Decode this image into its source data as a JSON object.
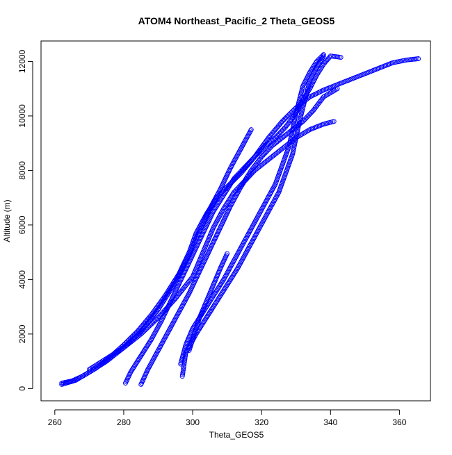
{
  "chart_data": {
    "type": "scatter",
    "title": "ATOM4 Northeast_Pacific_2 Theta_GEOS5",
    "xlabel": "Theta_GEOS5",
    "ylabel": "Altitude (m)",
    "xlim": [
      256,
      369
    ],
    "ylim": [
      -450,
      12750
    ],
    "x_ticks": [
      260,
      280,
      300,
      320,
      340,
      360
    ],
    "x_tick_labels": [
      "260",
      "280",
      "300",
      "320",
      "340",
      "360"
    ],
    "y_ticks": [
      0,
      2000,
      4000,
      6000,
      8000,
      10000,
      12000
    ],
    "y_tick_labels": [
      "0",
      "2000",
      "4000",
      "6000",
      "8000",
      "10000",
      "12000"
    ],
    "marker": "open-circle",
    "color": "#0000ff",
    "grid": false,
    "series": [
      {
        "x": [
          262,
          265,
          268,
          272,
          276,
          280,
          284,
          288,
          292,
          296,
          299,
          301,
          304,
          307,
          310,
          314,
          318,
          322,
          326,
          330,
          334,
          338,
          342,
          346,
          350,
          354,
          358,
          362,
          365.5
        ],
        "y": [
          200,
          280,
          450,
          750,
          1150,
          1600,
          2100,
          2700,
          3400,
          4200,
          5000,
          5700,
          6400,
          7000,
          7400,
          7900,
          8500,
          9200,
          9800,
          10300,
          10700,
          10950,
          11150,
          11350,
          11550,
          11750,
          11950,
          12050,
          12100
        ]
      },
      {
        "x": [
          262,
          266,
          270,
          275,
          280,
          285,
          290,
          295,
          299,
          302,
          305,
          308,
          311,
          314,
          317
        ],
        "y": [
          150,
          300,
          600,
          1000,
          1500,
          2100,
          2900,
          3900,
          4900,
          5800,
          6600,
          7300,
          8100,
          8800,
          9500
        ]
      },
      {
        "x": [
          270,
          275,
          280,
          285,
          290,
          295,
          300,
          303,
          306,
          309,
          312,
          315,
          318,
          322,
          326,
          330,
          334,
          338,
          341
        ],
        "y": [
          700,
          1100,
          1500,
          2000,
          2600,
          3300,
          4100,
          5000,
          5900,
          6600,
          7200,
          7600,
          8000,
          8400,
          8800,
          9200,
          9500,
          9700,
          9800
        ]
      },
      {
        "x": [
          280.5,
          282,
          285,
          288,
          291,
          294,
          297,
          300,
          303,
          306,
          309,
          312,
          315,
          318,
          321,
          324,
          327,
          330,
          332,
          334,
          336,
          338,
          340,
          343
        ],
        "y": [
          200,
          600,
          1200,
          1800,
          2500,
          3300,
          4100,
          4900,
          5700,
          6500,
          7100,
          7700,
          8100,
          8500,
          8900,
          9200,
          9600,
          10100,
          10600,
          11000,
          11500,
          11900,
          12200,
          12150
        ]
      },
      {
        "x": [
          285,
          287,
          290,
          293,
          296,
          299,
          302,
          305,
          308,
          311,
          314,
          317,
          320,
          323,
          326,
          329,
          332,
          335,
          338,
          342
        ],
        "y": [
          150,
          700,
          1400,
          2100,
          2800,
          3500,
          4300,
          5100,
          5900,
          6700,
          7400,
          8000,
          8500,
          8900,
          9200,
          9500,
          9800,
          10200,
          10700,
          11000
        ]
      },
      {
        "x": [
          297,
          298,
          301,
          304,
          307,
          310,
          313,
          316,
          319,
          322,
          325,
          327,
          329,
          330,
          331,
          332,
          333,
          334,
          336,
          338
        ],
        "y": [
          450,
          1300,
          2000,
          2600,
          3200,
          3800,
          4400,
          5100,
          5800,
          6500,
          7200,
          7900,
          8600,
          9200,
          9800,
          10300,
          10800,
          11300,
          11800,
          12200
        ]
      },
      {
        "x": [
          296.5,
          298,
          300,
          303,
          306,
          309,
          312,
          315,
          318,
          321,
          324,
          326,
          328,
          329,
          330,
          331,
          332,
          334,
          336,
          338
        ],
        "y": [
          900,
          1600,
          2200,
          2800,
          3400,
          4000,
          4700,
          5400,
          6100,
          6800,
          7500,
          8200,
          8900,
          9500,
          10100,
          10600,
          11100,
          11600,
          12000,
          12250
        ]
      },
      {
        "x": [
          299,
          300,
          301,
          302,
          304,
          306,
          308,
          310
        ],
        "y": [
          1400,
          1800,
          2200,
          2600,
          3200,
          3800,
          4400,
          4950
        ]
      }
    ]
  }
}
